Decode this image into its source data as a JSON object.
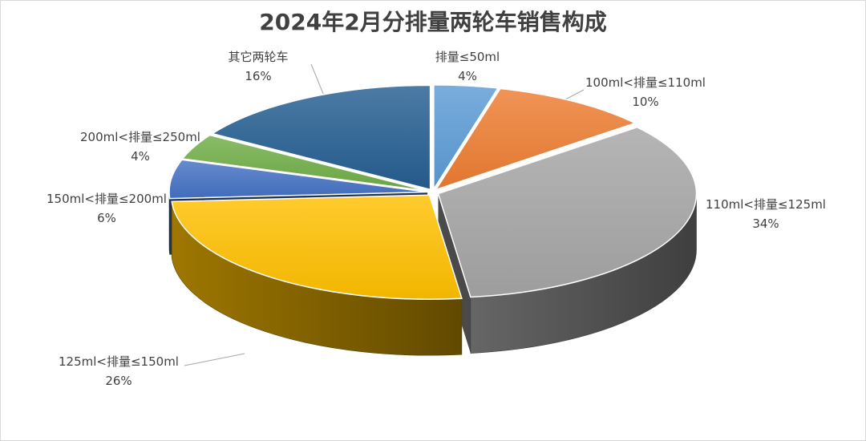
{
  "chart_data": {
    "type": "pie",
    "title": "2024年2月分排量两轮车销售构成",
    "slices": [
      {
        "label": "排量≤50ml",
        "value": 4,
        "display": "4%",
        "color": "#5B9BD5"
      },
      {
        "label": "100ml<排量≤110ml",
        "value": 10,
        "display": "10%",
        "color": "#ED7D31"
      },
      {
        "label": "110ml<排量≤125ml",
        "value": 34,
        "display": "34%",
        "color": "#A5A5A5"
      },
      {
        "label": "125ml<排量≤150ml",
        "value": 26,
        "display": "26%",
        "color": "#FFC000"
      },
      {
        "label": "150ml<排量≤200ml",
        "value": 6,
        "display": "6%",
        "color": "#4472C4"
      },
      {
        "label": "200ml<排量≤250ml",
        "value": 4,
        "display": "4%",
        "color": "#70AD47"
      },
      {
        "label": "其它两轮车",
        "value": 16,
        "display": "16%",
        "color": "#255E91"
      }
    ]
  }
}
